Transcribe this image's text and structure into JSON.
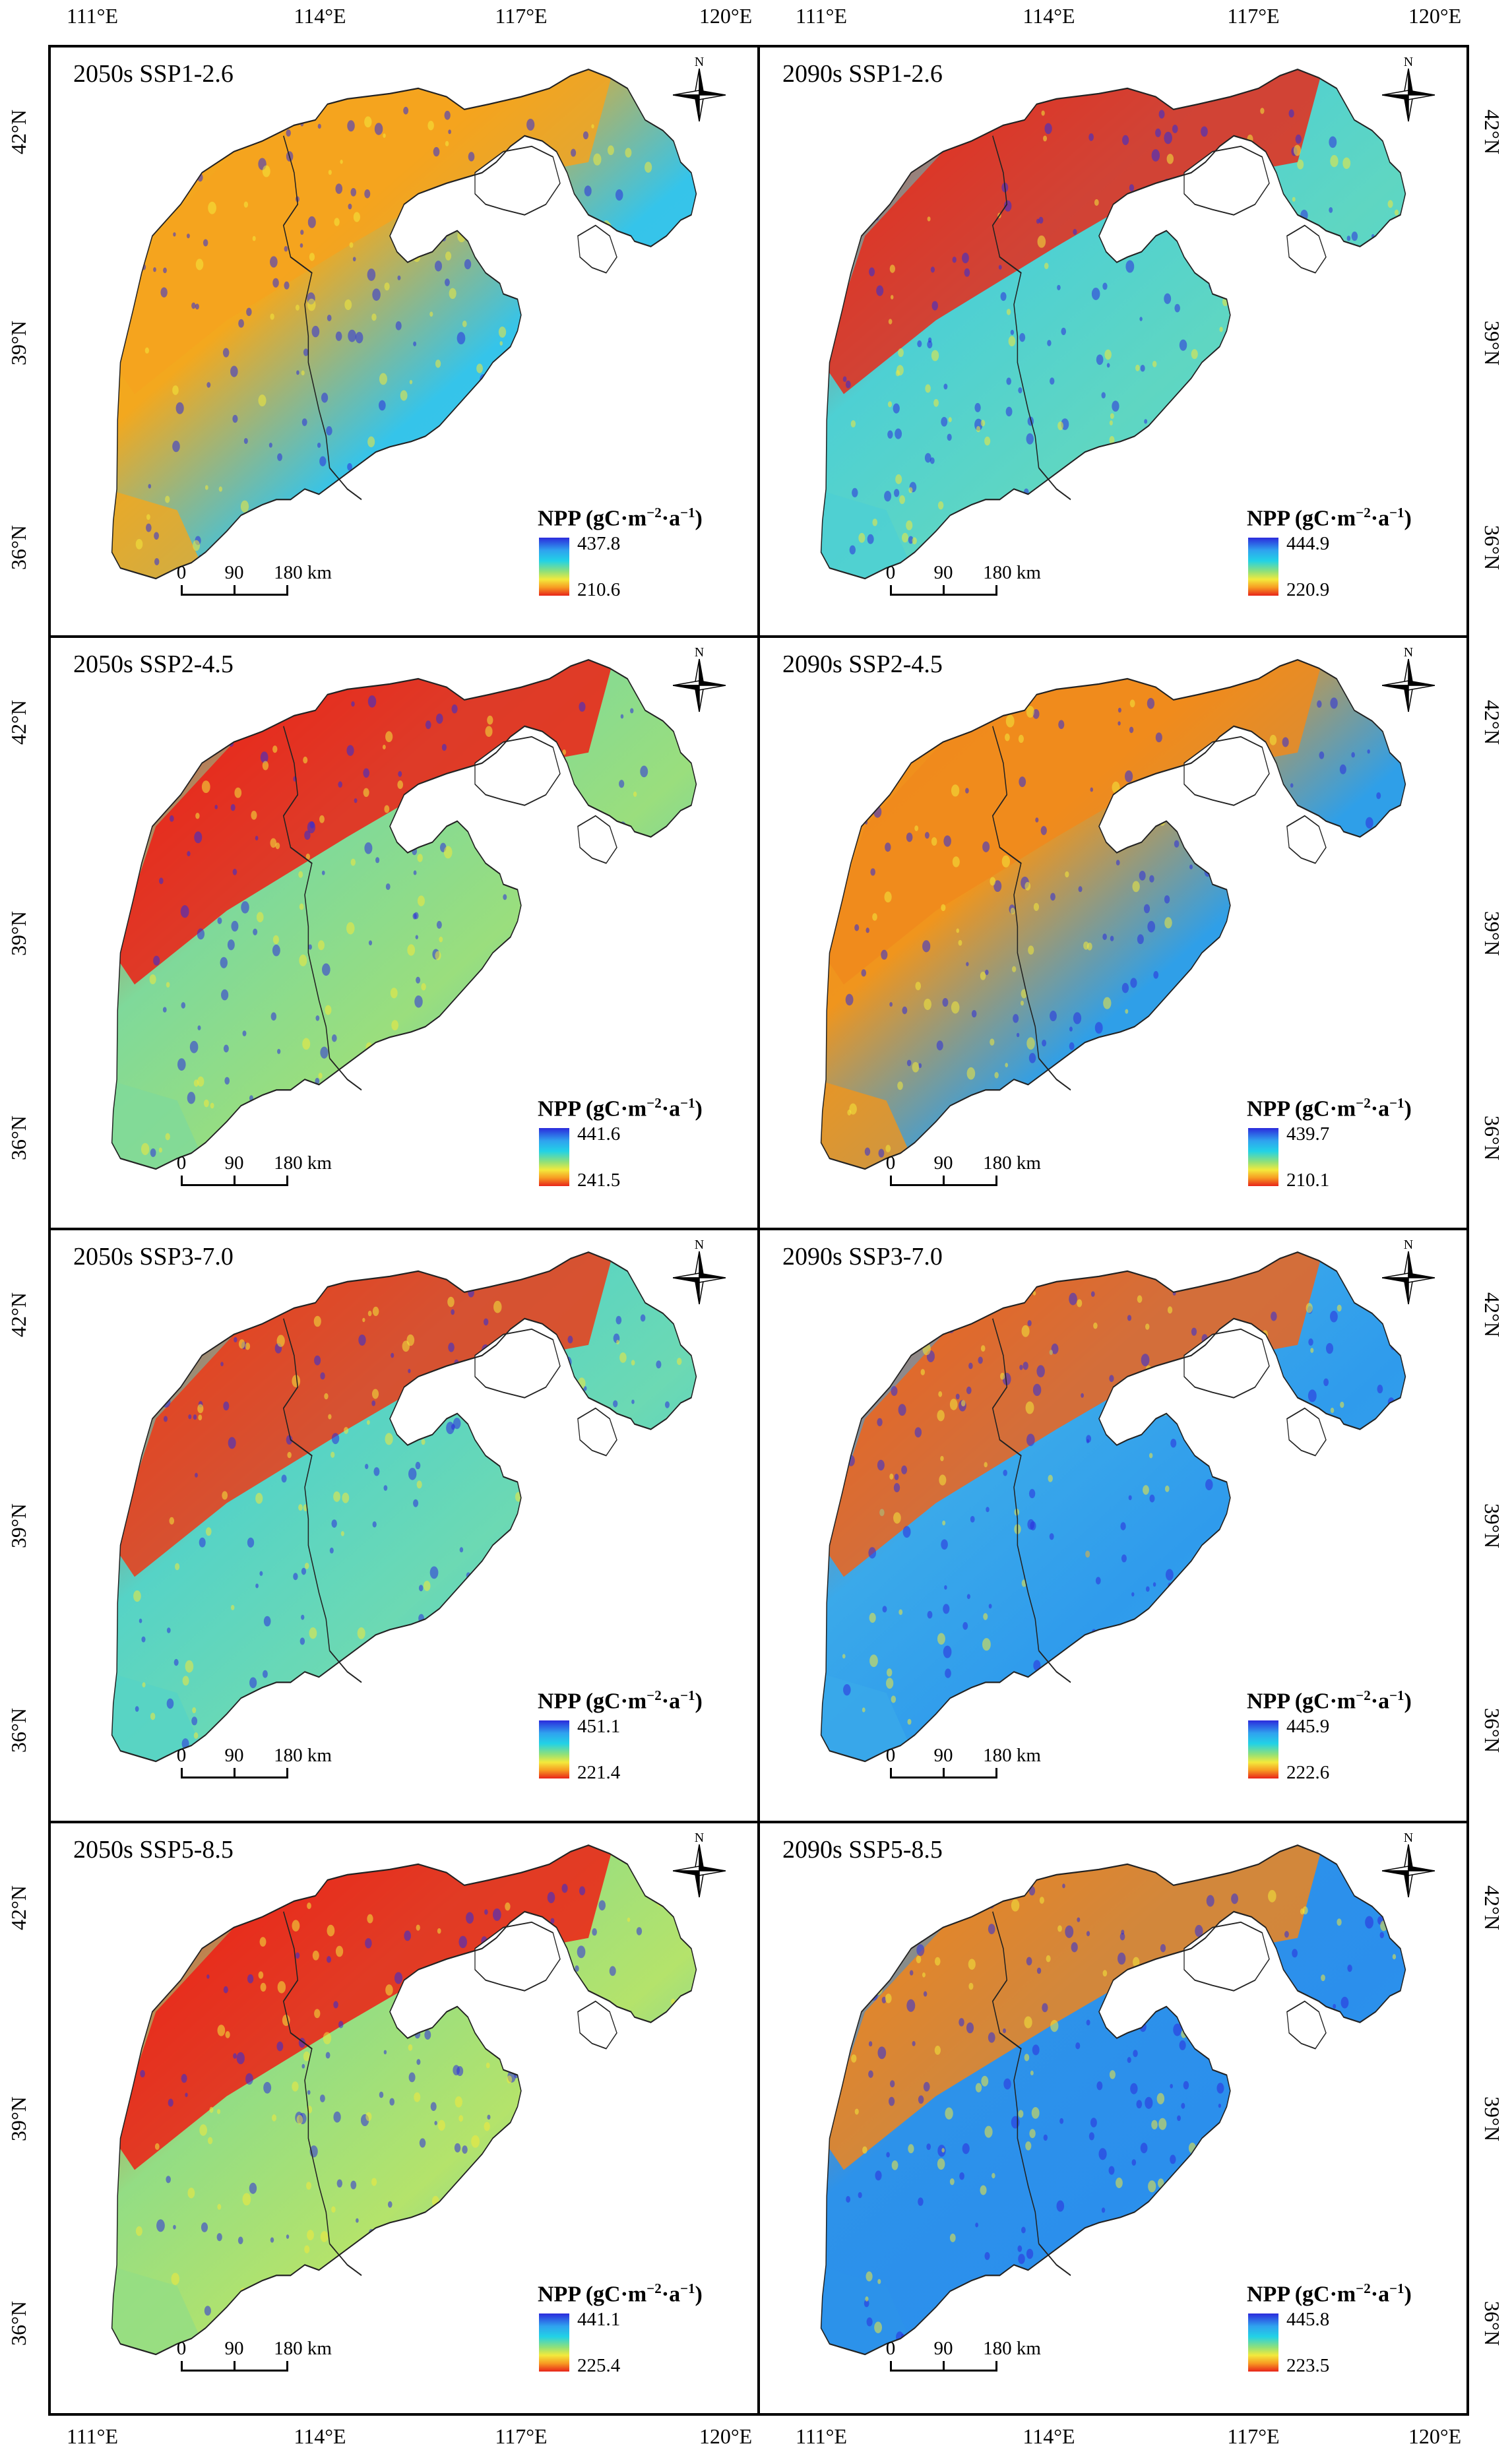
{
  "longitude_labels": [
    "111°E",
    "114°E",
    "117°E",
    "120°E"
  ],
  "latitude_labels": [
    "42°N",
    "39°N",
    "36°N"
  ],
  "legend_title": "NPP (gC·m⁻²·a⁻¹)",
  "legend_title_parts": {
    "main": "NPP (gC·m",
    "exp1": "−2",
    "mid": "·a",
    "exp2": "−1",
    "end": ")"
  },
  "scale_bar": {
    "labels": [
      "0",
      "90",
      "180 km"
    ]
  },
  "north_label": "N",
  "colors": {
    "high": "#2b2bdc",
    "mid": "#22d2e6",
    "mid2": "#f3ea3c",
    "low": "#e8241a",
    "boundary": "#222222"
  },
  "panels": [
    {
      "title": "2050s SSP1-2.6",
      "max": "437.8",
      "min": "210.6",
      "ramp_north": "#f4a31f",
      "ramp_ne": "#3fbfe8",
      "ramp_south": "#35c4ea",
      "ramp_west": "#f3a81e"
    },
    {
      "title": "2090s SSP1-2.6",
      "max": "444.9",
      "min": "220.9",
      "ramp_north": "#e82a1a",
      "ramp_ne": "#45d0d8",
      "ramp_south": "#5fd6c2",
      "ramp_west": "#4ed0d3"
    },
    {
      "title": "2050s SSP2-4.5",
      "max": "441.6",
      "min": "241.5",
      "ramp_north": "#ee1f14",
      "ramp_ne": "#36bde8",
      "ramp_south": "#9ade7d",
      "ramp_west": "#7fd99a"
    },
    {
      "title": "2090s SSP2-4.5",
      "max": "439.7",
      "min": "210.1",
      "ramp_north": "#f08a1c",
      "ramp_ne": "#2f9fe8",
      "ramp_south": "#2f9fe8",
      "ramp_west": "#f0951d"
    },
    {
      "title": "2050s SSP3-7.0",
      "max": "451.1",
      "min": "221.4",
      "ramp_north": "#ec3b18",
      "ramp_ne": "#39c1e6",
      "ramp_south": "#6cd9b3",
      "ramp_west": "#56d3c6"
    },
    {
      "title": "2090s SSP3-7.0",
      "max": "445.9",
      "min": "222.6",
      "ramp_north": "#ef641b",
      "ramp_ne": "#37a8ec",
      "ramp_south": "#2f9bec",
      "ramp_west": "#3aa9ea"
    },
    {
      "title": "2050s SSP5-8.5",
      "max": "441.1",
      "min": "225.4",
      "ramp_north": "#ee1e14",
      "ramp_ne": "#36bde8",
      "ramp_south": "#b4e36b",
      "ramp_west": "#93dd84"
    },
    {
      "title": "2090s SSP5-8.5",
      "max": "445.8",
      "min": "223.5",
      "ramp_north": "#f0851c",
      "ramp_ne": "#2e97ec",
      "ramp_south": "#2b8fec",
      "ramp_west": "#2d92ea"
    }
  ]
}
